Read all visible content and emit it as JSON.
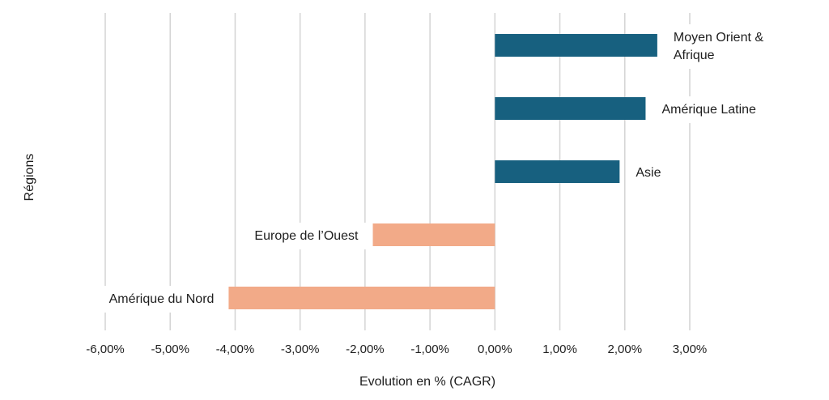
{
  "chart_data": {
    "type": "bar",
    "orientation": "horizontal",
    "title": "",
    "xlabel": "Evolution en % (CAGR)",
    "ylabel": "Régions",
    "xlim": [
      -6,
      3
    ],
    "grid": true,
    "x_ticks": [
      {
        "value": -6,
        "label": "-6,00%"
      },
      {
        "value": -5,
        "label": "-5,00%"
      },
      {
        "value": -4,
        "label": "-4,00%"
      },
      {
        "value": -3,
        "label": "-3,00%"
      },
      {
        "value": -2,
        "label": "-2,00%"
      },
      {
        "value": -1,
        "label": "-1,00%"
      },
      {
        "value": 0,
        "label": "0,00%"
      },
      {
        "value": 1,
        "label": "1,00%"
      },
      {
        "value": 2,
        "label": "2,00%"
      },
      {
        "value": 3,
        "label": "3,00%"
      }
    ],
    "bars": [
      {
        "category": [
          "Moyen Orient &",
          "Afrique"
        ],
        "value": 2.5
      },
      {
        "category": [
          "Amérique Latine"
        ],
        "value": 2.32
      },
      {
        "category": [
          "Asie"
        ],
        "value": 1.92
      },
      {
        "category": [
          "Europe de l’Ouest"
        ],
        "value": -1.88
      },
      {
        "category": [
          "Amérique du Nord"
        ],
        "value": -4.1
      }
    ],
    "colors": {
      "positive": "#17607f",
      "negative": "#f2aa88",
      "grid": "#d4d4d4"
    }
  }
}
